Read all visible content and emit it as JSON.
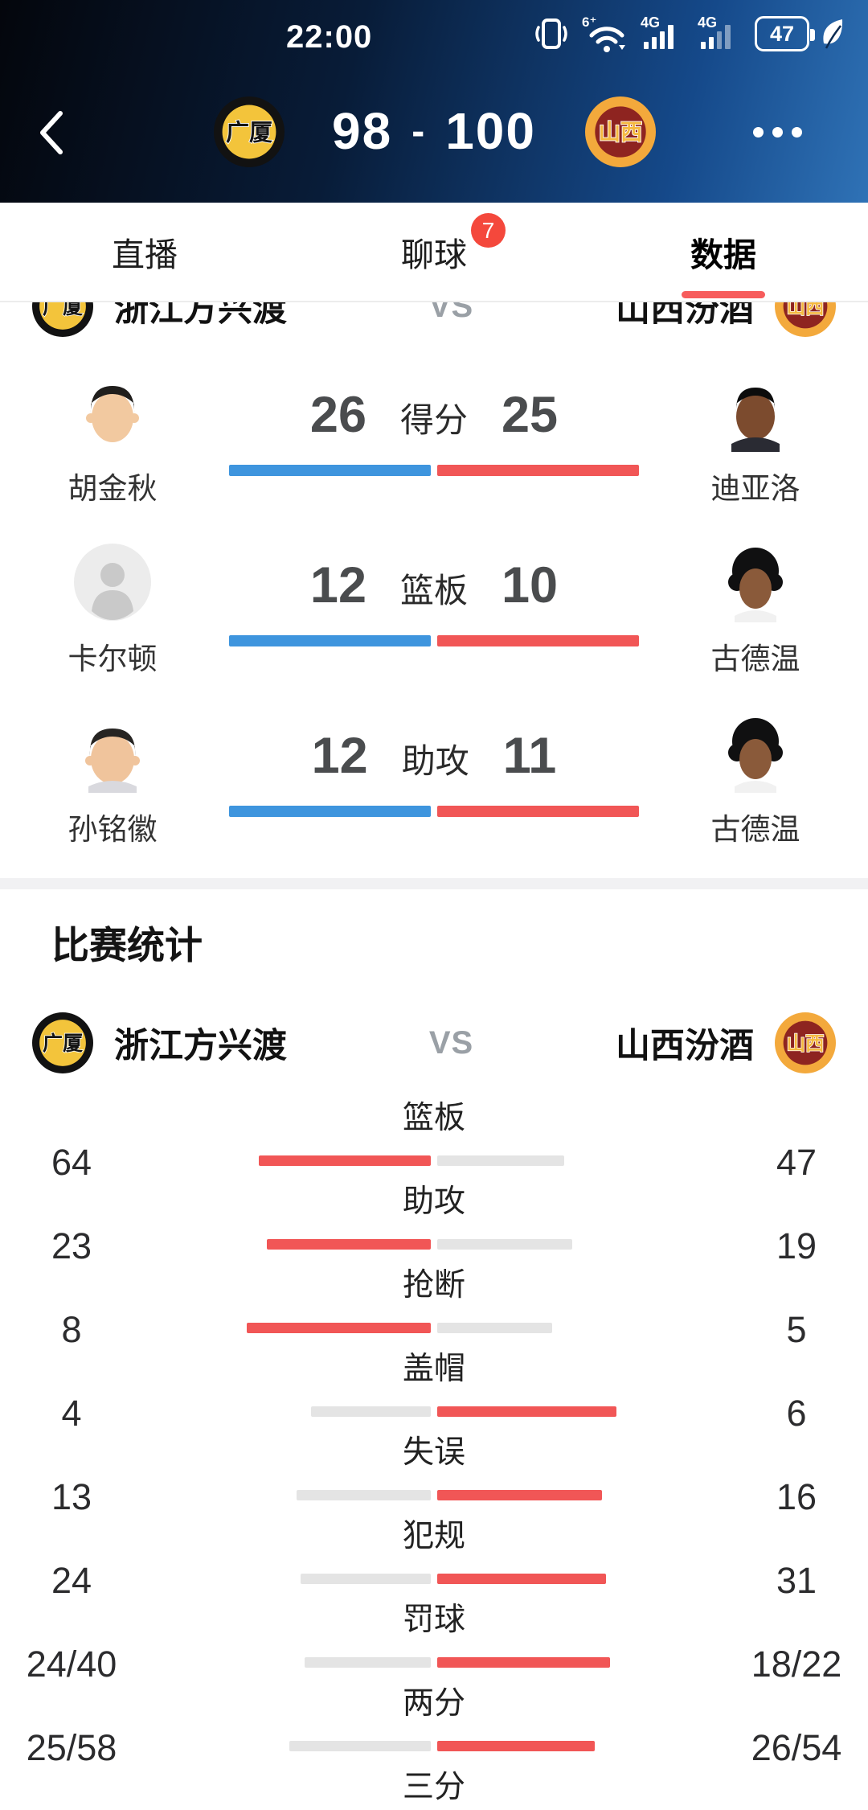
{
  "status_bar": {
    "time": "22:00",
    "battery_level": "47",
    "wifi_badge": "6⁺",
    "net1_label": "4G",
    "net2_label": "4G"
  },
  "header": {
    "home_logo_text": "广厦",
    "away_logo_text": "山西",
    "home_score": "98",
    "score_dash": "-",
    "away_score": "100"
  },
  "tabs": {
    "items": [
      {
        "label": "直播"
      },
      {
        "label": "聊球",
        "badge": "7"
      },
      {
        "label": "数据",
        "active": true
      }
    ]
  },
  "matchup": {
    "home_logo_text": "广厦",
    "home_name": "浙江方兴渡",
    "vs_label": "VS",
    "away_name": "山西汾酒",
    "away_logo_text": "山西"
  },
  "player_comparison": {
    "rows": [
      {
        "stat_label": "得分",
        "left": {
          "name": "胡金秋",
          "value": "26"
        },
        "right": {
          "name": "迪亚洛",
          "value": "25"
        }
      },
      {
        "stat_label": "篮板",
        "left": {
          "name": "卡尔顿",
          "value": "12"
        },
        "right": {
          "name": "古德温",
          "value": "10"
        }
      },
      {
        "stat_label": "助攻",
        "left": {
          "name": "孙铭徽",
          "value": "12"
        },
        "right": {
          "name": "古德温",
          "value": "11"
        }
      }
    ]
  },
  "team_stats": {
    "title": "比赛统计",
    "rows": [
      {
        "label": "篮板",
        "left": "64",
        "right": "47"
      },
      {
        "label": "助攻",
        "left": "23",
        "right": "19"
      },
      {
        "label": "抢断",
        "left": "8",
        "right": "5"
      },
      {
        "label": "盖帽",
        "left": "4",
        "right": "6"
      },
      {
        "label": "失误",
        "left": "13",
        "right": "16"
      },
      {
        "label": "犯规",
        "left": "24",
        "right": "31"
      },
      {
        "label": "罚球",
        "left": "24/40",
        "right": "18/22"
      },
      {
        "label": "两分",
        "left": "25/58",
        "right": "26/54"
      },
      {
        "label": "三分",
        "left": "",
        "right": ""
      }
    ]
  },
  "colors": {
    "accent_red": "#F75C5C",
    "bar_blue": "#3E95DE",
    "bar_red": "#F15656",
    "bar_gray": "#E4E4E4",
    "badge_red": "#F4483C"
  }
}
